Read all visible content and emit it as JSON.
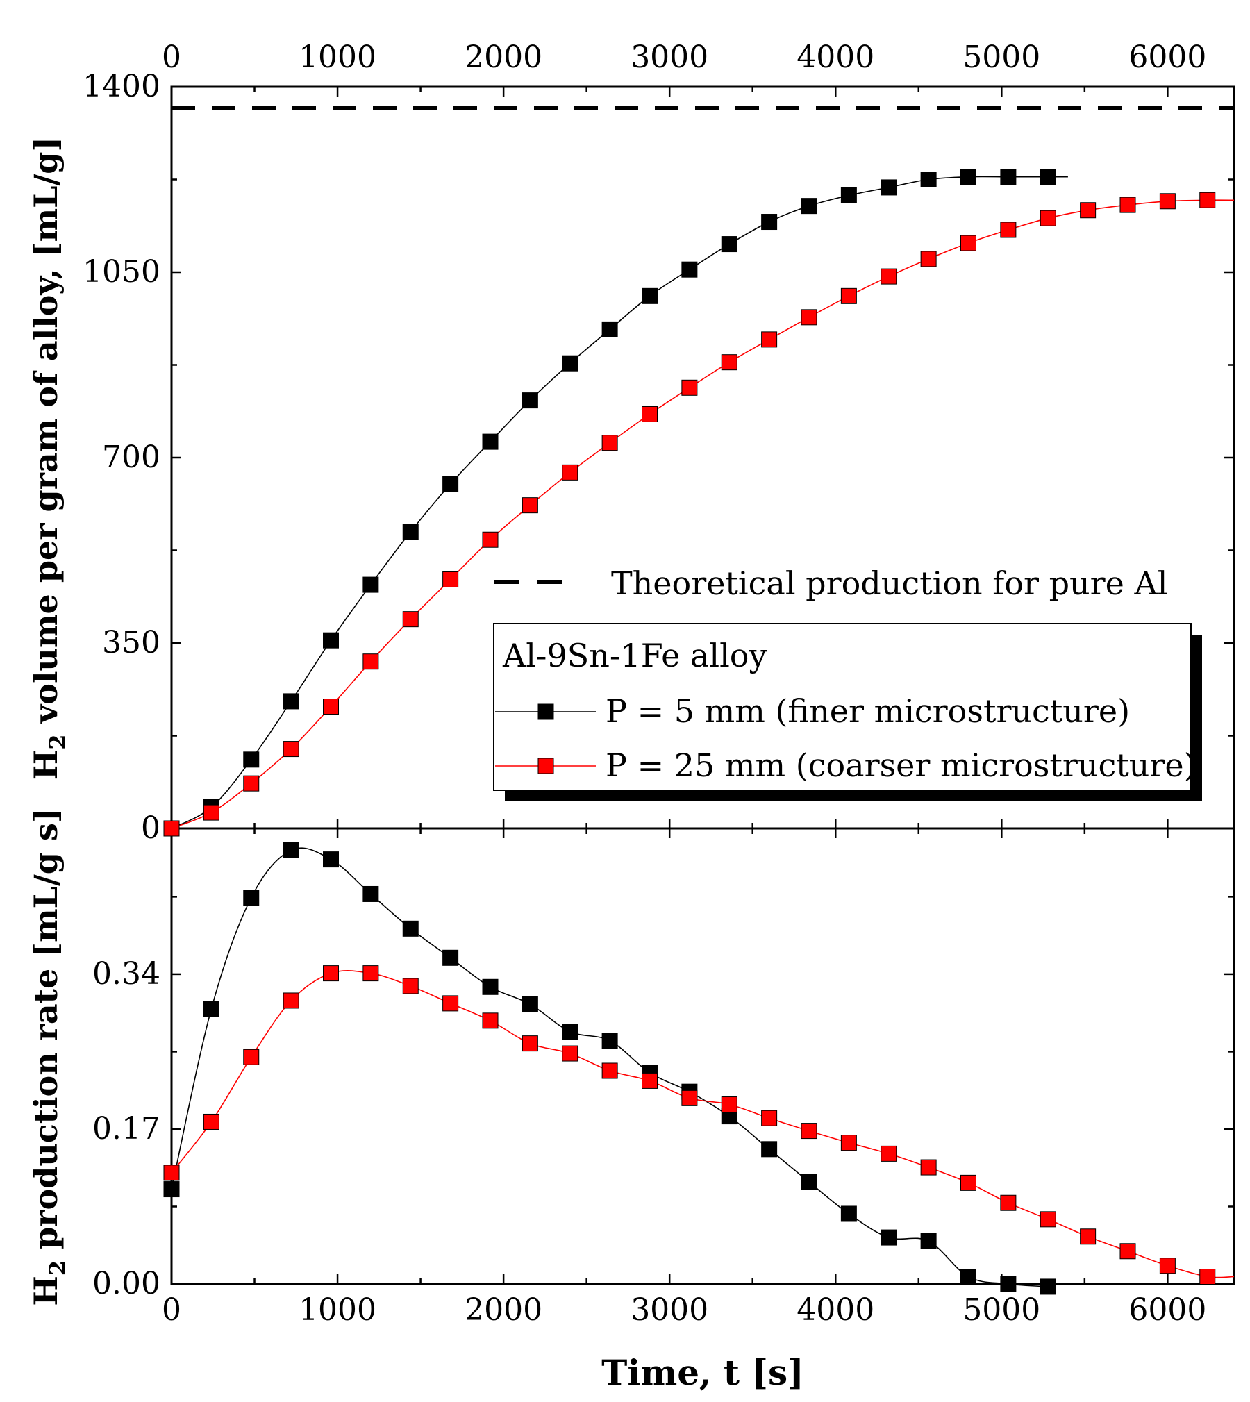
{
  "chart_data": [
    {
      "id": "volume",
      "type": "line",
      "ylabel_main": "H",
      "ylabel_sub": "2",
      "ylabel_rest": " volume per gram of alloy, [mL/g]",
      "xlim": [
        0,
        6400
      ],
      "ylim": [
        0,
        1400
      ],
      "xticks": [
        0,
        1000,
        2000,
        3000,
        4000,
        5000,
        6000
      ],
      "yticks": [
        0,
        350,
        700,
        1050,
        1400
      ],
      "ytick_labels": [
        "0",
        "350",
        "700",
        "1050",
        "1400"
      ],
      "reference_line": {
        "y": 1360,
        "label": "Theoretical production for pure Al"
      },
      "legend_title": "Al-9Sn-1Fe alloy",
      "series": [
        {
          "name": "P = 5 mm (finer microstructure)",
          "color": "#000000",
          "x": [
            0,
            240,
            480,
            720,
            960,
            1200,
            1440,
            1680,
            1920,
            2160,
            2400,
            2640,
            2880,
            3120,
            3360,
            3600,
            3840,
            4080,
            4320,
            4560,
            4800,
            5040,
            5280
          ],
          "y": [
            0,
            40,
            130,
            240,
            355,
            460,
            560,
            650,
            730,
            808,
            878,
            942,
            1005,
            1055,
            1103,
            1145,
            1175,
            1195,
            1210,
            1225,
            1230,
            1230,
            1230
          ],
          "line_end_x": 5400
        },
        {
          "name": "P = 25 mm (coarser microstructure)",
          "color": "#ff0000",
          "x": [
            0,
            240,
            480,
            720,
            960,
            1200,
            1440,
            1680,
            1920,
            2160,
            2400,
            2640,
            2880,
            3120,
            3360,
            3600,
            3840,
            4080,
            4320,
            4560,
            4800,
            5040,
            5280,
            5520,
            5760,
            6000,
            6240
          ],
          "y": [
            0,
            30,
            85,
            150,
            230,
            315,
            395,
            470,
            545,
            610,
            672,
            728,
            782,
            832,
            880,
            923,
            965,
            1005,
            1042,
            1075,
            1105,
            1130,
            1152,
            1167,
            1177,
            1184,
            1186
          ],
          "line_end_x": 6400
        }
      ]
    },
    {
      "id": "rate",
      "type": "line",
      "ylabel_main": "H",
      "ylabel_sub": "2",
      "ylabel_rest": " production rate [mL/g s]",
      "xlabel": "Time, t [s]",
      "xlim": [
        0,
        6400
      ],
      "ylim": [
        0,
        0.5
      ],
      "xticks": [
        0,
        1000,
        2000,
        3000,
        4000,
        5000,
        6000
      ],
      "yticks": [
        0,
        0.17,
        0.34
      ],
      "ytick_labels": [
        "0.00",
        "0.17",
        "0.34"
      ],
      "series": [
        {
          "name": "P = 5 mm (finer microstructure)",
          "color": "#000000",
          "x": [
            0,
            240,
            480,
            720,
            960,
            1200,
            1440,
            1680,
            1920,
            2160,
            2400,
            2640,
            2880,
            3120,
            3360,
            3600,
            3840,
            4080,
            4320,
            4560,
            4800,
            5040,
            5280
          ],
          "y": [
            0.104,
            0.302,
            0.424,
            0.476,
            0.466,
            0.428,
            0.39,
            0.358,
            0.326,
            0.307,
            0.277,
            0.267,
            0.232,
            0.211,
            0.184,
            0.148,
            0.112,
            0.077,
            0.051,
            0.047,
            0.008,
            0.0,
            -0.003
          ],
          "line_end_x": 5280
        },
        {
          "name": "P = 25 mm (coarser microstructure)",
          "color": "#ff0000",
          "x": [
            0,
            240,
            480,
            720,
            960,
            1200,
            1440,
            1680,
            1920,
            2160,
            2400,
            2640,
            2880,
            3120,
            3360,
            3600,
            3840,
            4080,
            4320,
            4560,
            4800,
            5040,
            5280,
            5520,
            5760,
            6000,
            6240
          ],
          "y": [
            0.122,
            0.178,
            0.249,
            0.311,
            0.341,
            0.341,
            0.327,
            0.308,
            0.289,
            0.264,
            0.253,
            0.234,
            0.223,
            0.204,
            0.197,
            0.182,
            0.168,
            0.155,
            0.143,
            0.128,
            0.111,
            0.089,
            0.071,
            0.052,
            0.036,
            0.02,
            0.008
          ],
          "line_end_x": 6400
        }
      ]
    }
  ]
}
